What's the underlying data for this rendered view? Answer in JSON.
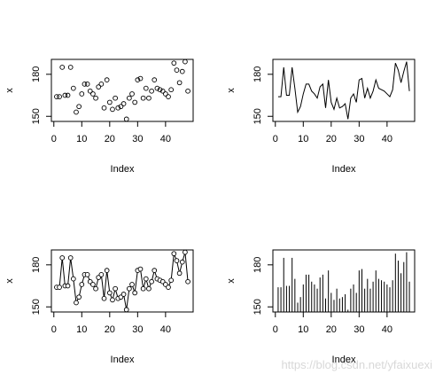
{
  "chart_data": [
    {
      "type": "points",
      "xlabel": "Index",
      "ylabel": "x",
      "color": "#000000",
      "values": [
        164,
        164,
        185,
        165,
        165,
        185,
        170,
        153,
        157,
        166,
        173,
        173,
        168,
        166,
        163,
        171,
        173,
        156,
        176,
        160,
        155,
        163,
        156,
        157,
        159,
        148,
        163,
        166,
        160,
        176,
        177,
        163,
        170,
        163,
        168,
        176,
        170,
        169,
        168,
        166,
        164,
        169,
        188,
        183,
        174,
        182,
        189,
        168
      ],
      "xlim": [
        -0.88,
        49.88
      ],
      "ylim": [
        146.36,
        190.64
      ],
      "xticks": [
        0,
        10,
        20,
        30,
        40
      ],
      "yticks": [
        150,
        180
      ]
    },
    {
      "type": "line",
      "xlabel": "Index",
      "ylabel": "x",
      "color": "#000000",
      "values": [
        164,
        164,
        185,
        165,
        165,
        185,
        170,
        153,
        157,
        166,
        173,
        173,
        168,
        166,
        163,
        171,
        173,
        156,
        176,
        160,
        155,
        163,
        156,
        157,
        159,
        148,
        163,
        166,
        160,
        176,
        177,
        163,
        170,
        163,
        168,
        176,
        170,
        169,
        168,
        166,
        164,
        169,
        188,
        183,
        174,
        182,
        189,
        168
      ],
      "xlim": [
        -0.88,
        49.88
      ],
      "ylim": [
        146.36,
        190.64
      ],
      "xticks": [
        0,
        10,
        20,
        30,
        40
      ],
      "yticks": [
        150,
        180
      ]
    },
    {
      "type": "points_line",
      "xlabel": "Index",
      "ylabel": "x",
      "color": "#000000",
      "values": [
        164,
        164,
        185,
        165,
        165,
        185,
        170,
        153,
        157,
        166,
        173,
        173,
        168,
        166,
        163,
        171,
        173,
        156,
        176,
        160,
        155,
        163,
        156,
        157,
        159,
        148,
        163,
        166,
        160,
        176,
        177,
        163,
        170,
        163,
        168,
        176,
        170,
        169,
        168,
        166,
        164,
        169,
        188,
        183,
        174,
        182,
        189,
        168
      ],
      "xlim": [
        -0.88,
        49.88
      ],
      "ylim": [
        146.36,
        190.64
      ],
      "xticks": [
        0,
        10,
        20,
        30,
        40
      ],
      "yticks": [
        150,
        180
      ]
    },
    {
      "type": "needle",
      "xlabel": "Index",
      "ylabel": "x",
      "color": "#000000",
      "values": [
        164,
        164,
        185,
        165,
        165,
        185,
        170,
        153,
        157,
        166,
        173,
        173,
        168,
        166,
        163,
        171,
        173,
        156,
        176,
        160,
        155,
        163,
        156,
        157,
        159,
        148,
        163,
        166,
        160,
        176,
        177,
        163,
        170,
        163,
        168,
        176,
        170,
        169,
        168,
        166,
        164,
        169,
        188,
        183,
        174,
        182,
        189,
        168
      ],
      "xlim": [
        -0.88,
        49.88
      ],
      "ylim": [
        146.36,
        190.64
      ],
      "xticks": [
        0,
        10,
        20,
        30,
        40
      ],
      "yticks": [
        150,
        180
      ]
    }
  ],
  "watermark": "https://blog.csdn.net/yfaixuexi"
}
